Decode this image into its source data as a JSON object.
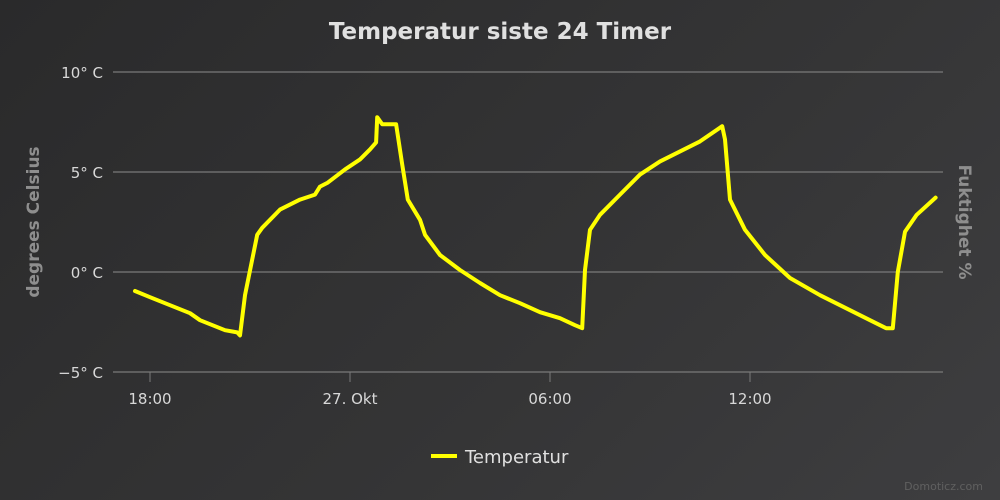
{
  "chart_data": {
    "type": "line",
    "title": "Temperatur siste 24 Timer",
    "ylabel": "degrees Celsius",
    "ylabel_right": "Fuktighet %",
    "xlabel": "",
    "ylim": [
      -5,
      10
    ],
    "y_ticks": [
      {
        "value": 10,
        "label": "10° C"
      },
      {
        "value": 5,
        "label": "5° C"
      },
      {
        "value": 0,
        "label": "0° C"
      },
      {
        "value": -5,
        "label": "−5° C"
      }
    ],
    "x_ticks": [
      {
        "value": "26 18:00",
        "label": "18:00"
      },
      {
        "value": "27 00:00",
        "label": "27. Okt"
      },
      {
        "value": "27 06:00",
        "label": "06:00"
      },
      {
        "value": "27 12:00",
        "label": "12:00"
      }
    ],
    "grid": true,
    "legend_position": "bottom",
    "series": [
      {
        "name": "Temperatur",
        "color": "#ffff00",
        "points": [
          [
            "26 17:33",
            -0.95
          ],
          [
            "26 18:00",
            -1.26
          ],
          [
            "26 18:36",
            -1.66
          ],
          [
            "26 19:12",
            -2.06
          ],
          [
            "26 19:30",
            -2.41
          ],
          [
            "26 20:15",
            -2.91
          ],
          [
            "26 20:37",
            -3.02
          ],
          [
            "26 20:42",
            -3.17
          ],
          [
            "26 20:51",
            -1.16
          ],
          [
            "26 21:13",
            1.86
          ],
          [
            "26 21:22",
            2.21
          ],
          [
            "26 21:54",
            3.12
          ],
          [
            "26 22:30",
            3.62
          ],
          [
            "26 22:57",
            3.87
          ],
          [
            "26 23:06",
            4.27
          ],
          [
            "26 23:20",
            4.47
          ],
          [
            "26 23:51",
            5.13
          ],
          [
            "27 00:18",
            5.63
          ],
          [
            "27 00:36",
            6.13
          ],
          [
            "27 00:47",
            6.48
          ],
          [
            "27 00:49",
            7.74
          ],
          [
            "27 00:58",
            7.39
          ],
          [
            "27 01:23",
            7.39
          ],
          [
            "27 01:34",
            5.38
          ],
          [
            "27 01:44",
            3.62
          ],
          [
            "27 02:06",
            2.61
          ],
          [
            "27 02:15",
            1.86
          ],
          [
            "27 02:42",
            0.85
          ],
          [
            "27 03:18",
            0.1
          ],
          [
            "27 03:54",
            -0.55
          ],
          [
            "27 04:30",
            -1.16
          ],
          [
            "27 05:06",
            -1.56
          ],
          [
            "27 05:42",
            -2.01
          ],
          [
            "27 06:18",
            -2.31
          ],
          [
            "27 06:45",
            -2.66
          ],
          [
            "27 06:58",
            -2.81
          ],
          [
            "27 07:03",
            0.1
          ],
          [
            "27 07:12",
            2.11
          ],
          [
            "27 07:30",
            2.86
          ],
          [
            "27 08:06",
            3.87
          ],
          [
            "27 08:42",
            4.87
          ],
          [
            "27 09:18",
            5.53
          ],
          [
            "27 10:30",
            6.53
          ],
          [
            "27 11:10",
            7.29
          ],
          [
            "27 11:15",
            6.63
          ],
          [
            "27 11:24",
            3.62
          ],
          [
            "27 11:51",
            2.11
          ],
          [
            "27 12:27",
            0.85
          ],
          [
            "27 13:12",
            -0.3
          ],
          [
            "27 14:06",
            -1.16
          ],
          [
            "27 15:00",
            -1.91
          ],
          [
            "27 15:36",
            -2.41
          ],
          [
            "27 16:05",
            -2.81
          ],
          [
            "27 16:17",
            -2.81
          ],
          [
            "27 16:26",
            0.0
          ],
          [
            "27 16:39",
            2.01
          ],
          [
            "27 17:00",
            2.86
          ],
          [
            "27 17:34",
            3.72
          ]
        ]
      }
    ]
  },
  "watermark": "Domoticz.com"
}
